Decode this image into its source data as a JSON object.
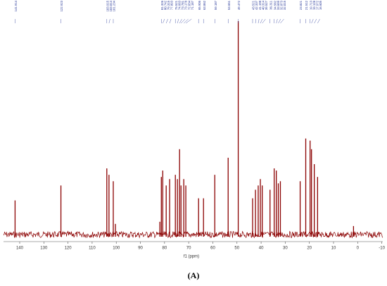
{
  "chart_data": {
    "type": "nmr",
    "x_label": "f1 (ppm)",
    "caption": "(A)",
    "color": "#8b0000",
    "label_color": "#2a3a9a",
    "xlim": [
      146.7,
      -10.4
    ],
    "xticks": [
      140,
      130,
      120,
      110,
      100,
      90,
      80,
      70,
      60,
      50,
      40,
      30,
      20,
      10,
      0,
      -10
    ],
    "ylim": [
      0,
      100
    ],
    "peaks": [
      {
        "ppm": 141.914,
        "height": 16
      },
      {
        "ppm": 122.923,
        "height": 23
      },
      {
        "ppm": 103.915,
        "height": 31
      },
      {
        "ppm": 103.014,
        "height": 28
      },
      {
        "ppm": 101.234,
        "height": 25
      },
      {
        "ppm": 100.347,
        "height": 5
      },
      {
        "ppm": 81.938,
        "height": 6
      },
      {
        "ppm": 81.326,
        "height": 27
      },
      {
        "ppm": 80.742,
        "height": 30
      },
      {
        "ppm": 79.315,
        "height": 23
      },
      {
        "ppm": 77.893,
        "height": 26
      },
      {
        "ppm": 75.521,
        "height": 28
      },
      {
        "ppm": 74.663,
        "height": 26
      },
      {
        "ppm": 73.781,
        "height": 40
      },
      {
        "ppm": 73.178,
        "height": 23
      },
      {
        "ppm": 72.034,
        "height": 26
      },
      {
        "ppm": 71.187,
        "height": 23
      },
      {
        "ppm": 65.906,
        "height": 17
      },
      {
        "ppm": 63.862,
        "height": 17
      },
      {
        "ppm": 59.187,
        "height": 28
      },
      {
        "ppm": 53.651,
        "height": 36
      },
      {
        "ppm": 49.472,
        "height": 100
      },
      {
        "ppm": 43.521,
        "height": 17
      },
      {
        "ppm": 42.337,
        "height": 21
      },
      {
        "ppm": 41.198,
        "height": 23
      },
      {
        "ppm": 40.314,
        "height": 26
      },
      {
        "ppm": 39.527,
        "height": 23
      },
      {
        "ppm": 36.311,
        "height": 21
      },
      {
        "ppm": 34.582,
        "height": 31
      },
      {
        "ppm": 33.699,
        "height": 30
      },
      {
        "ppm": 32.873,
        "height": 24
      },
      {
        "ppm": 32.015,
        "height": 25
      },
      {
        "ppm": 23.821,
        "height": 25
      },
      {
        "ppm": 21.512,
        "height": 45
      },
      {
        "ppm": 19.713,
        "height": 44
      },
      {
        "ppm": 19.128,
        "height": 40
      },
      {
        "ppm": 17.972,
        "height": 33
      },
      {
        "ppm": 16.605,
        "height": 27
      },
      {
        "ppm": 1.726,
        "height": 4
      }
    ],
    "peak_labels": [
      141.914,
      122.923,
      103.915,
      103.014,
      101.234,
      81.326,
      80.742,
      79.315,
      77.893,
      75.521,
      74.663,
      73.781,
      73.178,
      72.034,
      71.187,
      65.906,
      63.862,
      59.187,
      53.651,
      49.472,
      43.521,
      42.337,
      41.198,
      40.314,
      39.527,
      36.311,
      34.582,
      33.699,
      32.873,
      32.015,
      23.821,
      21.512,
      19.713,
      19.128,
      17.972,
      16.605
    ]
  }
}
